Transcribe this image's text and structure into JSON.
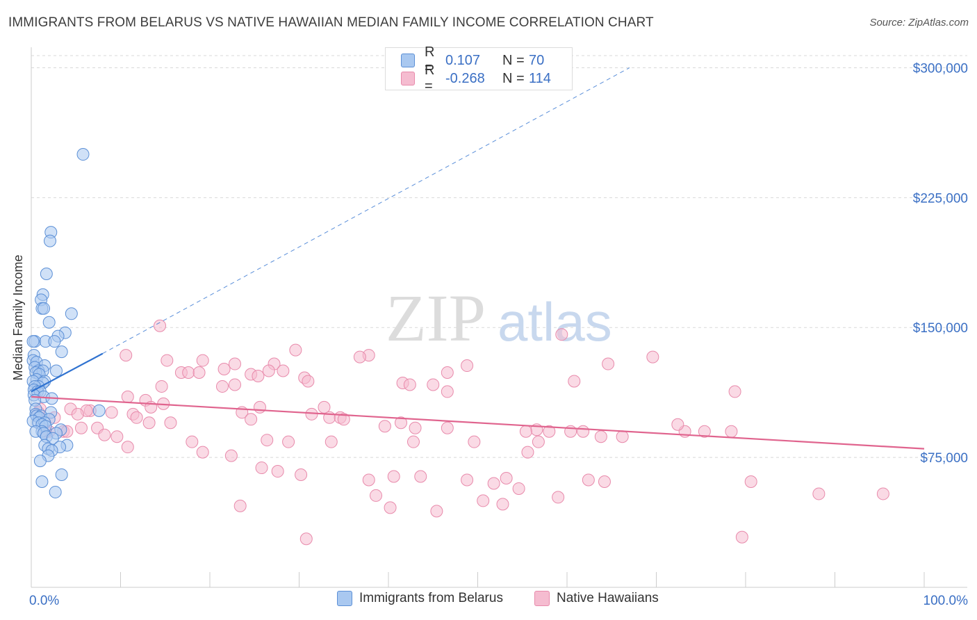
{
  "header": {
    "title": "IMMIGRANTS FROM BELARUS VS NATIVE HAWAIIAN MEDIAN FAMILY INCOME CORRELATION CHART",
    "source": "Source: ZipAtlas.com"
  },
  "legend": {
    "rows": [
      {
        "r_label": "R =",
        "r_value": "0.107",
        "n_label": "N =",
        "n_value": "70"
      },
      {
        "r_label": "R =",
        "r_value": "-0.268",
        "n_label": "N =",
        "n_value": "114"
      }
    ]
  },
  "bottom_legend": {
    "series_a": "Immigrants from Belarus",
    "series_b": "Native Hawaiians"
  },
  "watermark": {
    "zip": "ZIP",
    "atlas": "atlas"
  },
  "colors": {
    "blue_fill": "#a9c8f0",
    "blue_stroke": "#5b8fd6",
    "blue_line": "#2f72d0",
    "pink_fill": "#f5bcd0",
    "pink_stroke": "#e88aab",
    "pink_line": "#e0648e",
    "axis_text": "#3a6fc4",
    "grid": "#d8d8d8"
  },
  "chart_data": {
    "type": "scatter",
    "ylabel": "Median Family Income",
    "xlabel": "",
    "xlim": [
      0,
      100
    ],
    "ylim": [
      0,
      300000
    ],
    "x_tick_labels": [
      "0.0%",
      "100.0%"
    ],
    "y_ticks": [
      75000,
      150000,
      225000,
      300000
    ],
    "y_tick_labels": [
      "$75,000",
      "$150,000",
      "$225,000",
      "$300,000"
    ],
    "grid": true,
    "series": [
      {
        "name": "Immigrants from Belarus",
        "r": 0.107,
        "n": 70,
        "trend": {
          "x0": 0,
          "y0": 113000,
          "x1": 8,
          "y1": 135000,
          "dashed_to_x": 67,
          "dashed_to_y": 300000
        },
        "points": [
          [
            5.8,
            250000
          ],
          [
            2.2,
            205000
          ],
          [
            2.1,
            200000
          ],
          [
            1.7,
            181000
          ],
          [
            1.3,
            169000
          ],
          [
            1.1,
            166000
          ],
          [
            1.2,
            161000
          ],
          [
            1.4,
            161000
          ],
          [
            4.5,
            158000
          ],
          [
            2.0,
            153000
          ],
          [
            3.8,
            147000
          ],
          [
            3.0,
            145000
          ],
          [
            0.4,
            142000
          ],
          [
            0.2,
            142000
          ],
          [
            1.6,
            142000
          ],
          [
            2.6,
            142000
          ],
          [
            3.4,
            136000
          ],
          [
            0.3,
            134000
          ],
          [
            0.2,
            131000
          ],
          [
            0.6,
            130000
          ],
          [
            1.5,
            128000
          ],
          [
            0.4,
            127000
          ],
          [
            0.8,
            125000
          ],
          [
            1.3,
            125000
          ],
          [
            2.8,
            125000
          ],
          [
            0.5,
            124000
          ],
          [
            0.9,
            123000
          ],
          [
            0.6,
            120000
          ],
          [
            1.5,
            119000
          ],
          [
            0.2,
            119000
          ],
          [
            1.3,
            118000
          ],
          [
            0.8,
            116000
          ],
          [
            0.4,
            116000
          ],
          [
            0.3,
            114000
          ],
          [
            0.7,
            113000
          ],
          [
            1.0,
            113000
          ],
          [
            0.3,
            111000
          ],
          [
            1.4,
            110000
          ],
          [
            2.3,
            109000
          ],
          [
            0.4,
            108000
          ],
          [
            0.5,
            103000
          ],
          [
            7.6,
            102000
          ],
          [
            2.2,
            101000
          ],
          [
            0.5,
            100000
          ],
          [
            0.6,
            99000
          ],
          [
            1.1,
            99000
          ],
          [
            0.9,
            98000
          ],
          [
            2.0,
            97000
          ],
          [
            0.2,
            96000
          ],
          [
            0.8,
            95000
          ],
          [
            1.5,
            95000
          ],
          [
            1.2,
            94000
          ],
          [
            1.6,
            93000
          ],
          [
            3.3,
            91000
          ],
          [
            1.2,
            90000
          ],
          [
            0.5,
            90000
          ],
          [
            1.4,
            89000
          ],
          [
            2.8,
            89000
          ],
          [
            1.7,
            87000
          ],
          [
            2.4,
            86000
          ],
          [
            4.0,
            82000
          ],
          [
            1.5,
            82000
          ],
          [
            3.2,
            81000
          ],
          [
            1.9,
            80000
          ],
          [
            2.3,
            79000
          ],
          [
            1.9,
            76000
          ],
          [
            1.0,
            73000
          ],
          [
            3.4,
            65000
          ],
          [
            1.2,
            61000
          ],
          [
            2.7,
            55000
          ]
        ]
      },
      {
        "name": "Native Hawaiians",
        "r": -0.268,
        "n": 114,
        "trend": {
          "x0": 0,
          "y0": 110000,
          "x1": 100,
          "y1": 80000
        },
        "points": [
          [
            14.4,
            151000
          ],
          [
            59.4,
            146000
          ],
          [
            29.6,
            137000
          ],
          [
            10.6,
            134000
          ],
          [
            37.8,
            134000
          ],
          [
            36.8,
            133000
          ],
          [
            69.6,
            133000
          ],
          [
            15.2,
            131000
          ],
          [
            19.2,
            131000
          ],
          [
            27.2,
            129000
          ],
          [
            22.8,
            129000
          ],
          [
            64.6,
            129000
          ],
          [
            48.8,
            128000
          ],
          [
            21.6,
            126000
          ],
          [
            26.6,
            125000
          ],
          [
            28.2,
            125000
          ],
          [
            16.8,
            124000
          ],
          [
            17.6,
            124000
          ],
          [
            18.8,
            124000
          ],
          [
            46.6,
            124000
          ],
          [
            24.6,
            123000
          ],
          [
            25.4,
            122000
          ],
          [
            30.6,
            121000
          ],
          [
            31.0,
            119000
          ],
          [
            60.8,
            119000
          ],
          [
            41.6,
            118000
          ],
          [
            42.4,
            117000
          ],
          [
            45.0,
            117000
          ],
          [
            22.8,
            117000
          ],
          [
            21.4,
            116000
          ],
          [
            14.6,
            116000
          ],
          [
            46.6,
            113000
          ],
          [
            78.8,
            113000
          ],
          [
            10.8,
            110000
          ],
          [
            12.8,
            108000
          ],
          [
            14.8,
            106000
          ],
          [
            25.6,
            104000
          ],
          [
            32.8,
            104000
          ],
          [
            13.4,
            104000
          ],
          [
            4.4,
            103000
          ],
          [
            23.6,
            101000
          ],
          [
            6.6,
            102000
          ],
          [
            6.2,
            102000
          ],
          [
            9.0,
            101000
          ],
          [
            5.2,
            100000
          ],
          [
            11.4,
            100000
          ],
          [
            31.4,
            100000
          ],
          [
            33.4,
            98000
          ],
          [
            34.6,
            98000
          ],
          [
            35.0,
            97000
          ],
          [
            15.6,
            95000
          ],
          [
            24.6,
            97000
          ],
          [
            13.2,
            95000
          ],
          [
            41.4,
            95000
          ],
          [
            39.6,
            93000
          ],
          [
            43.0,
            92000
          ],
          [
            46.6,
            92000
          ],
          [
            56.6,
            91000
          ],
          [
            55.4,
            90000
          ],
          [
            58.0,
            90000
          ],
          [
            60.4,
            90000
          ],
          [
            61.8,
            90000
          ],
          [
            73.2,
            90000
          ],
          [
            75.4,
            90000
          ],
          [
            78.4,
            90000
          ],
          [
            3.6,
            90000
          ],
          [
            2.0,
            90000
          ],
          [
            1.6,
            90000
          ],
          [
            4.0,
            90000
          ],
          [
            5.6,
            92000
          ],
          [
            7.4,
            92000
          ],
          [
            8.2,
            88000
          ],
          [
            9.6,
            87000
          ],
          [
            10.8,
            81000
          ],
          [
            19.2,
            78000
          ],
          [
            22.4,
            76000
          ],
          [
            25.8,
            69000
          ],
          [
            27.6,
            67000
          ],
          [
            30.2,
            65000
          ],
          [
            40.6,
            64000
          ],
          [
            43.6,
            64000
          ],
          [
            53.2,
            63000
          ],
          [
            37.8,
            62000
          ],
          [
            48.8,
            62000
          ],
          [
            51.8,
            60000
          ],
          [
            54.6,
            57000
          ],
          [
            59.0,
            52000
          ],
          [
            62.4,
            62000
          ],
          [
            64.2,
            61000
          ],
          [
            80.6,
            61000
          ],
          [
            88.2,
            54000
          ],
          [
            95.4,
            54000
          ],
          [
            38.6,
            53000
          ],
          [
            40.2,
            46000
          ],
          [
            45.4,
            44000
          ],
          [
            50.6,
            50000
          ],
          [
            52.8,
            48000
          ],
          [
            23.4,
            47000
          ],
          [
            79.6,
            29000
          ],
          [
            30.8,
            28000
          ],
          [
            55.6,
            78000
          ],
          [
            63.8,
            87000
          ],
          [
            66.2,
            87000
          ],
          [
            72.4,
            94000
          ],
          [
            11.8,
            98000
          ],
          [
            1.0,
            103000
          ],
          [
            0.8,
            101000
          ],
          [
            2.6,
            98000
          ],
          [
            18.0,
            84000
          ],
          [
            26.4,
            85000
          ],
          [
            33.6,
            84000
          ],
          [
            28.8,
            84000
          ],
          [
            42.8,
            84000
          ],
          [
            49.6,
            84000
          ],
          [
            56.8,
            84000
          ]
        ]
      }
    ]
  }
}
